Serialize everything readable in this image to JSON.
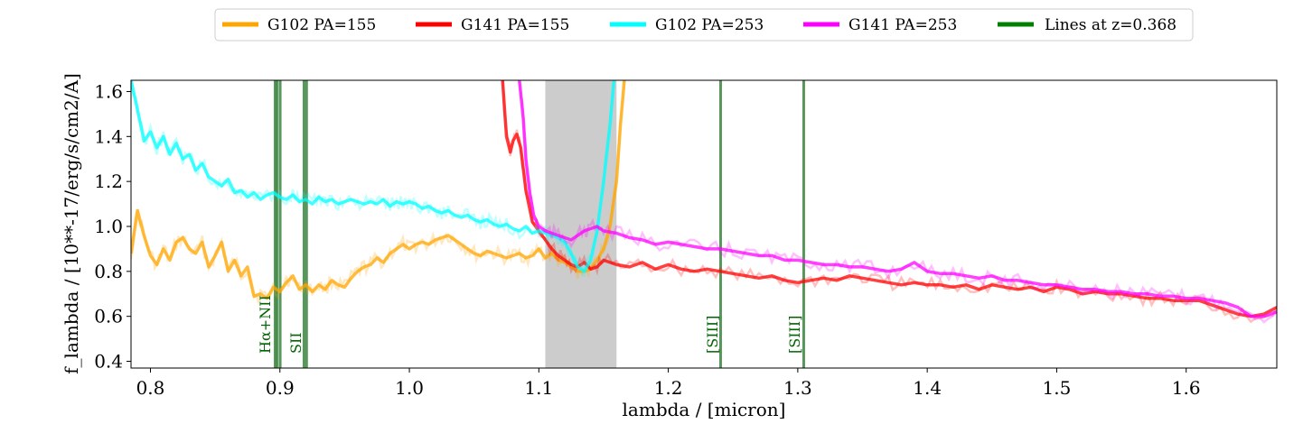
{
  "chart_data": {
    "type": "line",
    "title": "",
    "xlabel": "lambda / [micron]",
    "ylabel": "f_lambda / [10**-17/erg/s/cm2/A]",
    "xlim": [
      0.785,
      1.67
    ],
    "ylim": [
      0.37,
      1.65
    ],
    "x_ticks": [
      0.8,
      0.9,
      1.0,
      1.1,
      1.2,
      1.3,
      1.4,
      1.5,
      1.6
    ],
    "x_tick_labels": [
      "0.8",
      "0.9",
      "1.0",
      "1.1",
      "1.2",
      "1.3",
      "1.4",
      "1.5",
      "1.6"
    ],
    "y_ticks": [
      0.4,
      0.6,
      0.8,
      1.0,
      1.2,
      1.4,
      1.6
    ],
    "y_tick_labels": [
      "0.4",
      "0.6",
      "0.8",
      "1.0",
      "1.2",
      "1.4",
      "1.6"
    ],
    "legend_placement": "top-center",
    "legend": [
      {
        "label": "G102 PA=155",
        "color": "#ffa500"
      },
      {
        "label": "G141 PA=155",
        "color": "#ff0000"
      },
      {
        "label": "G102 PA=253",
        "color": "#00ffff"
      },
      {
        "label": "G141 PA=253",
        "color": "#ff00ff"
      },
      {
        "label": "Lines at z=0.368",
        "color": "#008000"
      }
    ],
    "shaded_region": {
      "x0": 1.105,
      "x1": 1.16,
      "color": "#999999"
    },
    "emission_lines": [
      {
        "label": "Hα+NII",
        "x": [
          0.8963,
          0.8978,
          0.9002
        ]
      },
      {
        "label": "SII",
        "x": [
          0.9186,
          0.9206
        ]
      },
      {
        "label": "[SIII]",
        "x": [
          1.2404
        ]
      },
      {
        "label": "[SIII]",
        "x": [
          1.3046
        ]
      }
    ],
    "series": [
      {
        "name": "G102 PA=155",
        "color": "#ffa500",
        "x": [
          0.785,
          0.79,
          0.795,
          0.8,
          0.805,
          0.81,
          0.815,
          0.82,
          0.825,
          0.83,
          0.835,
          0.84,
          0.845,
          0.85,
          0.855,
          0.86,
          0.865,
          0.87,
          0.875,
          0.88,
          0.885,
          0.89,
          0.895,
          0.9,
          0.905,
          0.91,
          0.915,
          0.92,
          0.925,
          0.93,
          0.935,
          0.94,
          0.945,
          0.95,
          0.955,
          0.96,
          0.965,
          0.97,
          0.975,
          0.98,
          0.985,
          0.99,
          0.995,
          1.0,
          1.005,
          1.01,
          1.015,
          1.02,
          1.025,
          1.03,
          1.035,
          1.04,
          1.045,
          1.05,
          1.055,
          1.06,
          1.065,
          1.07,
          1.075,
          1.08,
          1.085,
          1.09,
          1.095,
          1.1,
          1.105,
          1.11,
          1.115,
          1.12,
          1.125,
          1.13,
          1.135,
          1.14,
          1.145,
          1.15,
          1.155,
          1.16,
          1.163,
          1.166
        ],
        "y": [
          0.88,
          1.07,
          0.96,
          0.87,
          0.83,
          0.9,
          0.85,
          0.93,
          0.95,
          0.9,
          0.88,
          0.93,
          0.82,
          0.87,
          0.93,
          0.8,
          0.85,
          0.78,
          0.82,
          0.69,
          0.7,
          0.68,
          0.73,
          0.71,
          0.75,
          0.78,
          0.72,
          0.74,
          0.71,
          0.74,
          0.72,
          0.76,
          0.74,
          0.73,
          0.77,
          0.8,
          0.82,
          0.83,
          0.86,
          0.84,
          0.88,
          0.9,
          0.92,
          0.9,
          0.92,
          0.93,
          0.92,
          0.94,
          0.95,
          0.96,
          0.94,
          0.92,
          0.9,
          0.88,
          0.87,
          0.89,
          0.88,
          0.87,
          0.86,
          0.87,
          0.88,
          0.86,
          0.87,
          0.9,
          0.86,
          0.88,
          0.85,
          0.84,
          0.82,
          0.8,
          0.8,
          0.81,
          0.85,
          0.9,
          1.0,
          1.2,
          1.45,
          1.65
        ]
      },
      {
        "name": "G141 PA=155",
        "color": "#ff0000",
        "x": [
          1.072,
          1.075,
          1.078,
          1.08,
          1.083,
          1.086,
          1.09,
          1.095,
          1.1,
          1.105,
          1.11,
          1.115,
          1.12,
          1.125,
          1.13,
          1.135,
          1.14,
          1.145,
          1.15,
          1.16,
          1.17,
          1.18,
          1.19,
          1.2,
          1.21,
          1.22,
          1.23,
          1.24,
          1.25,
          1.26,
          1.27,
          1.28,
          1.29,
          1.3,
          1.31,
          1.32,
          1.33,
          1.34,
          1.35,
          1.36,
          1.37,
          1.38,
          1.39,
          1.4,
          1.41,
          1.42,
          1.43,
          1.44,
          1.45,
          1.46,
          1.47,
          1.48,
          1.49,
          1.5,
          1.51,
          1.52,
          1.53,
          1.54,
          1.55,
          1.56,
          1.57,
          1.58,
          1.59,
          1.6,
          1.61,
          1.62,
          1.63,
          1.64,
          1.65,
          1.66,
          1.67
        ],
        "y": [
          1.65,
          1.4,
          1.33,
          1.38,
          1.41,
          1.35,
          1.16,
          1.02,
          0.98,
          0.94,
          0.9,
          0.87,
          0.85,
          0.83,
          0.82,
          0.84,
          0.81,
          0.82,
          0.85,
          0.83,
          0.82,
          0.84,
          0.81,
          0.83,
          0.81,
          0.8,
          0.81,
          0.8,
          0.79,
          0.78,
          0.77,
          0.78,
          0.76,
          0.75,
          0.76,
          0.77,
          0.76,
          0.78,
          0.77,
          0.76,
          0.75,
          0.74,
          0.75,
          0.74,
          0.74,
          0.73,
          0.74,
          0.72,
          0.74,
          0.73,
          0.72,
          0.73,
          0.71,
          0.73,
          0.72,
          0.7,
          0.71,
          0.7,
          0.7,
          0.69,
          0.68,
          0.68,
          0.67,
          0.67,
          0.67,
          0.65,
          0.63,
          0.61,
          0.6,
          0.61,
          0.64
        ]
      },
      {
        "name": "G102 PA=253",
        "color": "#00ffff",
        "x": [
          0.785,
          0.79,
          0.795,
          0.8,
          0.805,
          0.81,
          0.815,
          0.82,
          0.825,
          0.83,
          0.835,
          0.84,
          0.845,
          0.85,
          0.855,
          0.86,
          0.865,
          0.87,
          0.875,
          0.88,
          0.885,
          0.89,
          0.895,
          0.9,
          0.905,
          0.91,
          0.915,
          0.92,
          0.925,
          0.93,
          0.935,
          0.94,
          0.945,
          0.95,
          0.955,
          0.96,
          0.965,
          0.97,
          0.975,
          0.98,
          0.985,
          0.99,
          0.995,
          1.0,
          1.005,
          1.01,
          1.015,
          1.02,
          1.025,
          1.03,
          1.035,
          1.04,
          1.045,
          1.05,
          1.055,
          1.06,
          1.065,
          1.07,
          1.075,
          1.08,
          1.085,
          1.09,
          1.095,
          1.1,
          1.105,
          1.11,
          1.115,
          1.12,
          1.125,
          1.13,
          1.135,
          1.14,
          1.145,
          1.15,
          1.155,
          1.158
        ],
        "y": [
          1.65,
          1.52,
          1.38,
          1.42,
          1.35,
          1.4,
          1.32,
          1.37,
          1.3,
          1.32,
          1.25,
          1.28,
          1.22,
          1.2,
          1.18,
          1.21,
          1.15,
          1.16,
          1.13,
          1.15,
          1.12,
          1.14,
          1.15,
          1.13,
          1.12,
          1.14,
          1.11,
          1.12,
          1.1,
          1.13,
          1.11,
          1.12,
          1.1,
          1.11,
          1.12,
          1.11,
          1.1,
          1.11,
          1.1,
          1.12,
          1.09,
          1.11,
          1.1,
          1.11,
          1.1,
          1.08,
          1.09,
          1.07,
          1.06,
          1.07,
          1.05,
          1.04,
          1.05,
          1.03,
          1.02,
          1.03,
          1.01,
          1.0,
          1.01,
          0.99,
          0.98,
          1.0,
          0.97,
          0.98,
          0.97,
          0.96,
          0.95,
          0.93,
          0.88,
          0.82,
          0.8,
          0.85,
          0.98,
          1.2,
          1.45,
          1.65
        ]
      },
      {
        "name": "G141 PA=253",
        "color": "#ff00ff",
        "x": [
          1.085,
          1.088,
          1.09,
          1.093,
          1.096,
          1.1,
          1.105,
          1.11,
          1.115,
          1.12,
          1.125,
          1.13,
          1.135,
          1.14,
          1.145,
          1.15,
          1.16,
          1.17,
          1.18,
          1.19,
          1.2,
          1.21,
          1.22,
          1.23,
          1.24,
          1.25,
          1.26,
          1.27,
          1.28,
          1.29,
          1.3,
          1.31,
          1.32,
          1.33,
          1.34,
          1.35,
          1.36,
          1.37,
          1.38,
          1.39,
          1.4,
          1.41,
          1.42,
          1.43,
          1.44,
          1.45,
          1.46,
          1.47,
          1.48,
          1.49,
          1.5,
          1.51,
          1.52,
          1.53,
          1.54,
          1.55,
          1.56,
          1.57,
          1.58,
          1.59,
          1.6,
          1.61,
          1.62,
          1.63,
          1.64,
          1.65,
          1.66,
          1.67
        ],
        "y": [
          1.65,
          1.48,
          1.3,
          1.15,
          1.05,
          1.0,
          0.98,
          0.97,
          0.96,
          0.95,
          0.94,
          0.96,
          0.98,
          0.99,
          1.0,
          0.98,
          0.97,
          0.95,
          0.94,
          0.92,
          0.93,
          0.92,
          0.91,
          0.9,
          0.9,
          0.89,
          0.88,
          0.87,
          0.87,
          0.85,
          0.85,
          0.84,
          0.83,
          0.83,
          0.82,
          0.82,
          0.81,
          0.8,
          0.81,
          0.84,
          0.8,
          0.79,
          0.79,
          0.78,
          0.77,
          0.78,
          0.76,
          0.76,
          0.75,
          0.74,
          0.74,
          0.73,
          0.72,
          0.72,
          0.71,
          0.71,
          0.7,
          0.7,
          0.69,
          0.69,
          0.68,
          0.68,
          0.67,
          0.66,
          0.64,
          0.6,
          0.6,
          0.62
        ]
      }
    ]
  }
}
